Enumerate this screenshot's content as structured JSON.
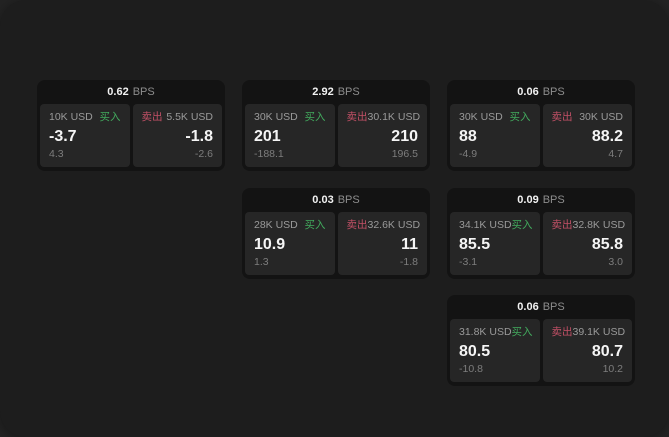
{
  "labels": {
    "bps_unit": "BPS",
    "buy": "买入",
    "sell": "卖出"
  },
  "colors": {
    "buy_green": "#42ab5e",
    "sell_red": "#c25066",
    "window_bg": "#1d1d1d",
    "card_bg": "#131313",
    "panel_bg": "#262626"
  },
  "cards": [
    {
      "bps": "0.62",
      "buy": {
        "amount": "10K USD",
        "value": "-3.7",
        "sub": "4.3"
      },
      "sell": {
        "amount": "5.5K USD",
        "value": "-1.8",
        "sub": "-2.6"
      }
    },
    {
      "bps": "2.92",
      "buy": {
        "amount": "30K USD",
        "value": "201",
        "sub": "-188.1"
      },
      "sell": {
        "amount": "30.1K USD",
        "value": "210",
        "sub": "196.5"
      }
    },
    {
      "bps": "0.06",
      "buy": {
        "amount": "30K USD",
        "value": "88",
        "sub": "-4.9"
      },
      "sell": {
        "amount": "30K USD",
        "value": "88.2",
        "sub": "4.7"
      }
    },
    {
      "bps": "0.03",
      "buy": {
        "amount": "28K USD",
        "value": "10.9",
        "sub": "1.3"
      },
      "sell": {
        "amount": "32.6K USD",
        "value": "11",
        "sub": "-1.8"
      }
    },
    {
      "bps": "0.09",
      "buy": {
        "amount": "34.1K USD",
        "value": "85.5",
        "sub": "-3.1"
      },
      "sell": {
        "amount": "32.8K USD",
        "value": "85.8",
        "sub": "3.0"
      }
    },
    {
      "bps": "0.06",
      "buy": {
        "amount": "31.8K USD",
        "value": "80.5",
        "sub": "-10.8"
      },
      "sell": {
        "amount": "39.1K USD",
        "value": "80.7",
        "sub": "10.2"
      }
    }
  ]
}
